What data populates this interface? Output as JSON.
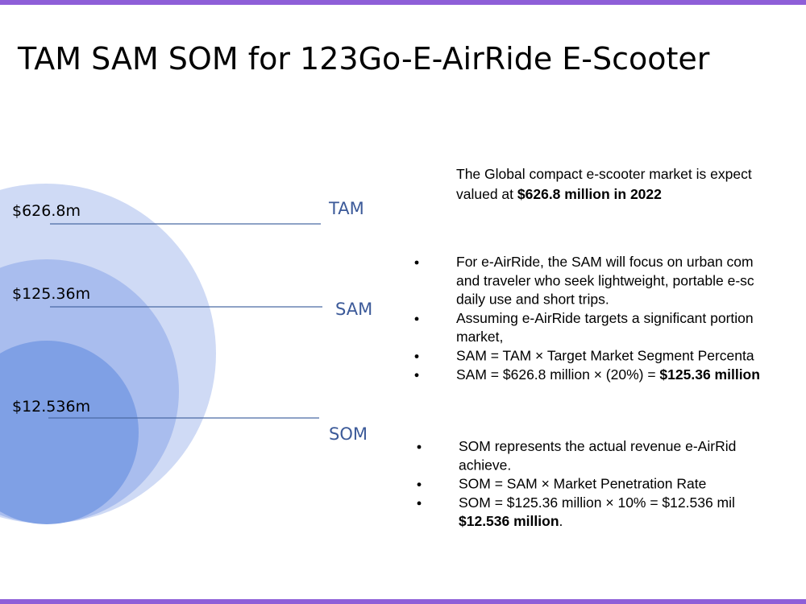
{
  "title": "TAM SAM SOM for 123Go-E-AirRide E-Scooter",
  "levels": [
    {
      "name": "TAM",
      "value": "$626.8m"
    },
    {
      "name": "SAM",
      "value": "$125.36m"
    },
    {
      "name": "SOM",
      "value": "$12.536m"
    }
  ],
  "intro": [
    [
      {
        "text": "The Global compact e-scooter market is expect"
      }
    ],
    [
      {
        "text": "valued at "
      },
      {
        "text": "$626.8 million in 2022",
        "bold": true
      }
    ]
  ],
  "sam_bullets": [
    [
      [
        {
          "text": "For e-AirRide, the SAM will focus on urban com"
        }
      ],
      [
        {
          "text": "and traveler who seek lightweight, portable e-sc"
        }
      ],
      [
        {
          "text": "daily use and short trips."
        }
      ]
    ],
    [
      [
        {
          "text": "Assuming e-AirRide targets a significant portion"
        }
      ],
      [
        {
          "text": "market,"
        }
      ]
    ],
    [
      [
        {
          "text": "SAM = TAM × Target Market Segment Percenta"
        }
      ]
    ],
    [
      [
        {
          "text": "SAM = $626.8 million × (20%) = "
        },
        {
          "text": "$125.36 million",
          "bold": true
        }
      ]
    ]
  ],
  "som_bullets": [
    [
      [
        {
          "text": "SOM represents the actual revenue e-AirRid"
        }
      ],
      [
        {
          "text": "achieve."
        }
      ]
    ],
    [
      [
        {
          "text": "SOM = SAM × Market Penetration Rate"
        }
      ]
    ],
    [
      [
        {
          "text": "SOM = $125.36 million × 10% = $12.536 mil"
        }
      ],
      [
        {
          "text": "$12.536 million",
          "bold": true
        },
        {
          "text": "."
        }
      ]
    ]
  ]
}
